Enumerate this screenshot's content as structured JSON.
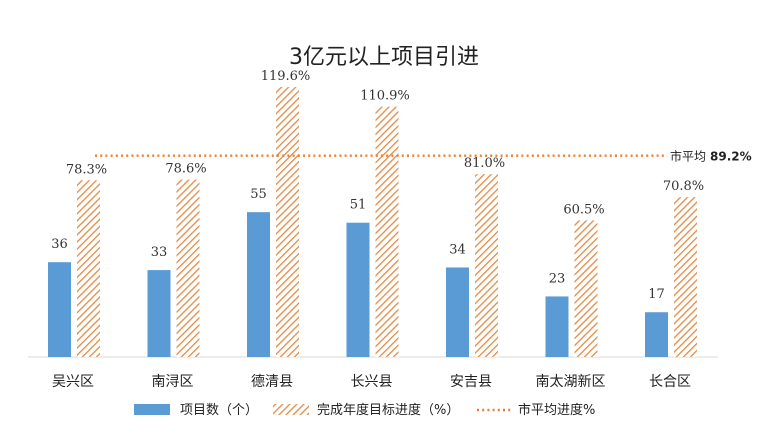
{
  "chart_data": {
    "type": "bar",
    "title": "3亿元以上项目引进",
    "categories": [
      "吴兴区",
      "南浔区",
      "德清县",
      "长兴县",
      "安吉县",
      "南太湖新区",
      "长合区"
    ],
    "series": [
      {
        "name": "项目数（个）",
        "axis": "left",
        "values": [
          36,
          33,
          55,
          51,
          34,
          23,
          17
        ],
        "labels": [
          "36",
          "33",
          "55",
          "51",
          "34",
          "23",
          "17"
        ],
        "color": "#5b9bd5",
        "style": "solid"
      },
      {
        "name": "完成年度目标进度（%）",
        "axis": "right",
        "values": [
          78.3,
          78.6,
          119.6,
          110.9,
          81.0,
          60.5,
          70.8
        ],
        "labels": [
          "78.3%",
          "78.6%",
          "119.6%",
          "110.9%",
          "81.0%",
          "60.5%",
          "70.8%"
        ],
        "color": "#ed7d31",
        "style": "hatched"
      }
    ],
    "reference_line": {
      "name": "市平均进度%",
      "axis": "right",
      "value": 89.2,
      "label_prefix": "市平均",
      "label_value": "89.2%",
      "color": "#ed7d31",
      "style": "dotted"
    },
    "left_axis_range": [
      0,
      120
    ],
    "right_axis_range": [
      0,
      140
    ],
    "grid": false,
    "legend_position": "bottom"
  }
}
